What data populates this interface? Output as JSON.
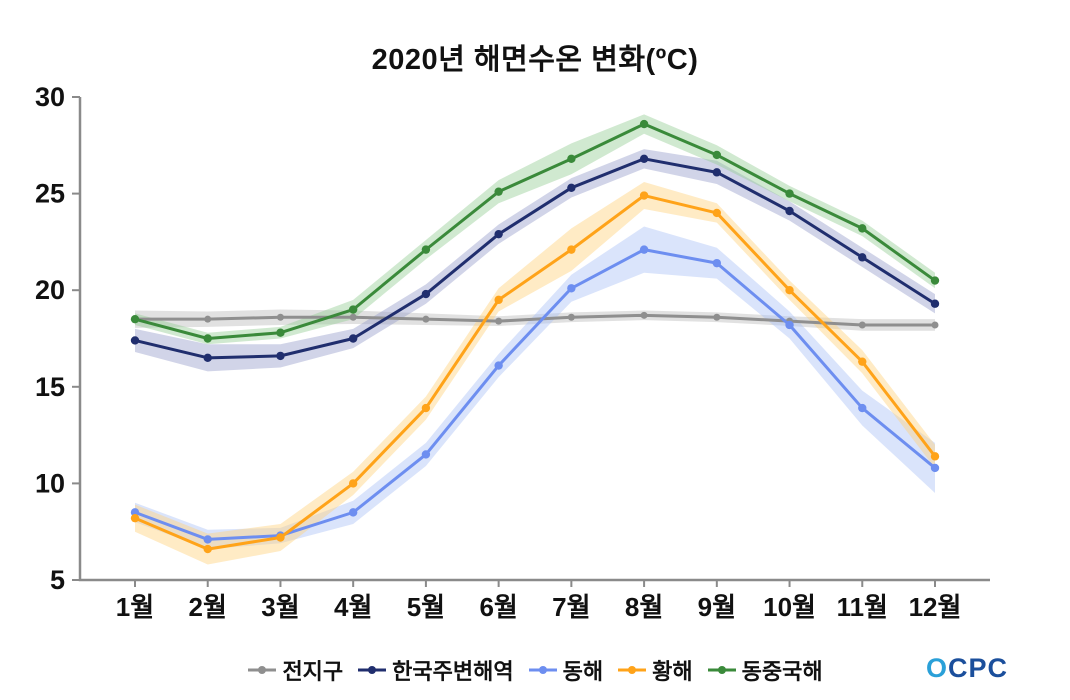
{
  "chart_data": {
    "type": "line",
    "title": "2020년 해면수온 변화(ºC)",
    "categories": [
      "1월",
      "2월",
      "3월",
      "4월",
      "5월",
      "6월",
      "7월",
      "8월",
      "9월",
      "10월",
      "11월",
      "12월"
    ],
    "ylim": [
      5,
      30
    ],
    "yticks": [
      5,
      10,
      15,
      20,
      25,
      30
    ],
    "grid": false,
    "legend_position": "bottom",
    "series": [
      {
        "id": "global",
        "name": "전지구",
        "color": "#8f8f8f",
        "band_color": "#bdbdbd",
        "values": [
          18.5,
          18.5,
          18.6,
          18.6,
          18.5,
          18.4,
          18.6,
          18.7,
          18.6,
          18.4,
          18.2,
          18.2
        ],
        "band": [
          0.45,
          0.4,
          0.4,
          0.35,
          0.3,
          0.25,
          0.25,
          0.25,
          0.25,
          0.25,
          0.3,
          0.3
        ]
      },
      {
        "id": "korea-seas",
        "name": "한국주변해역",
        "color": "#202e6e",
        "band_color": "#9aa0cc",
        "values": [
          17.4,
          16.5,
          16.6,
          17.5,
          19.8,
          22.9,
          25.3,
          26.8,
          26.1,
          24.1,
          21.7,
          19.3
        ],
        "band": [
          0.6,
          0.7,
          0.6,
          0.5,
          0.5,
          0.5,
          0.5,
          0.5,
          0.6,
          0.5,
          0.5,
          0.5
        ]
      },
      {
        "id": "east-sea",
        "name": "동해",
        "color": "#6d8ef0",
        "band_color": "#adc4f7",
        "values": [
          8.5,
          7.1,
          7.3,
          8.5,
          11.5,
          16.1,
          20.1,
          22.1,
          21.4,
          18.2,
          13.9,
          10.8
        ],
        "band": [
          0.5,
          0.5,
          0.4,
          0.6,
          0.6,
          0.6,
          0.7,
          1.2,
          0.8,
          0.7,
          0.9,
          1.3
        ]
      },
      {
        "id": "yellow-sea",
        "name": "황해",
        "color": "#ffa319",
        "band_color": "#ffd37e",
        "values": [
          8.2,
          6.6,
          7.2,
          10.0,
          13.9,
          19.5,
          22.1,
          24.9,
          24.0,
          20.0,
          16.3,
          11.4
        ],
        "band": [
          0.7,
          0.8,
          0.7,
          0.6,
          0.6,
          0.6,
          1.1,
          0.7,
          0.5,
          0.5,
          0.6,
          0.6
        ]
      },
      {
        "id": "east-china-sea",
        "name": "동중국해",
        "color": "#3a8a3a",
        "band_color": "#97cf97",
        "values": [
          18.5,
          17.5,
          17.8,
          19.0,
          22.1,
          25.1,
          26.8,
          28.6,
          27.0,
          25.0,
          23.2,
          20.5
        ],
        "band": [
          0.3,
          0.3,
          0.3,
          0.5,
          0.5,
          0.6,
          0.8,
          0.5,
          0.5,
          0.4,
          0.4,
          0.4
        ]
      }
    ]
  },
  "logo": {
    "text": "OCPC"
  }
}
